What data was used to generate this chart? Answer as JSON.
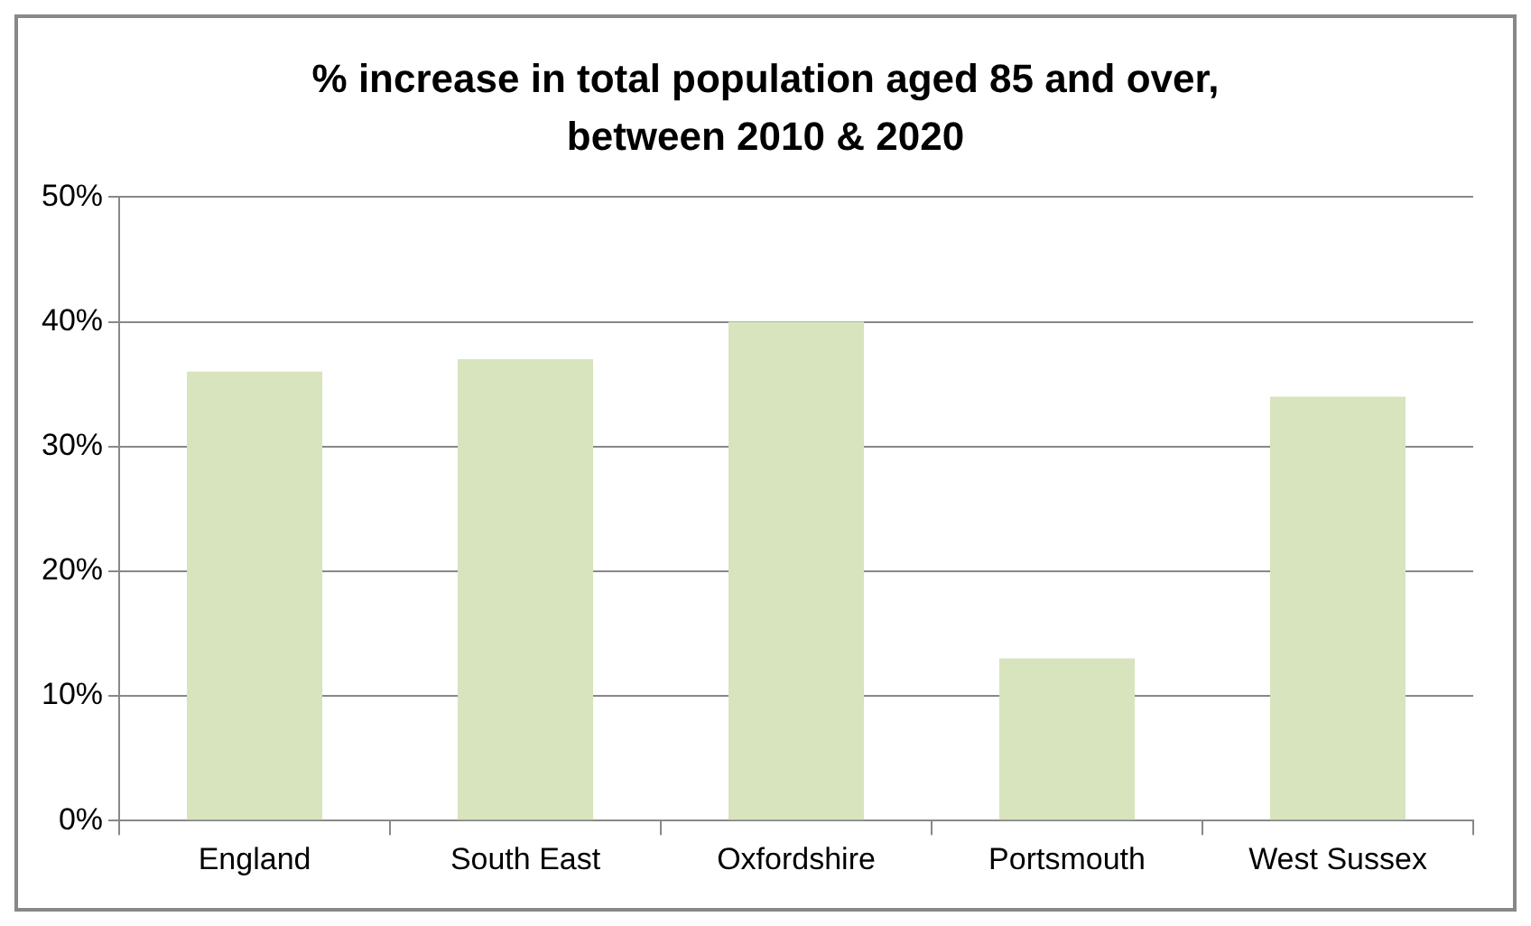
{
  "chart_data": {
    "type": "bar",
    "title": "% increase in total population aged 85 and over, between 2010 & 2020",
    "categories": [
      "England",
      "South East",
      "Oxfordshire",
      "Portsmouth",
      "West Sussex"
    ],
    "values": [
      36,
      37,
      40,
      13,
      34
    ],
    "color": "#d7e4bd",
    "ylim": [
      0,
      50
    ],
    "yticks": [
      {
        "value": 0,
        "label": "0%"
      },
      {
        "value": 10,
        "label": "10%"
      },
      {
        "value": 20,
        "label": "20%"
      },
      {
        "value": 30,
        "label": "30%"
      },
      {
        "value": 40,
        "label": "40%"
      },
      {
        "value": 50,
        "label": "50%"
      }
    ],
    "grid": "y",
    "legend": false
  }
}
